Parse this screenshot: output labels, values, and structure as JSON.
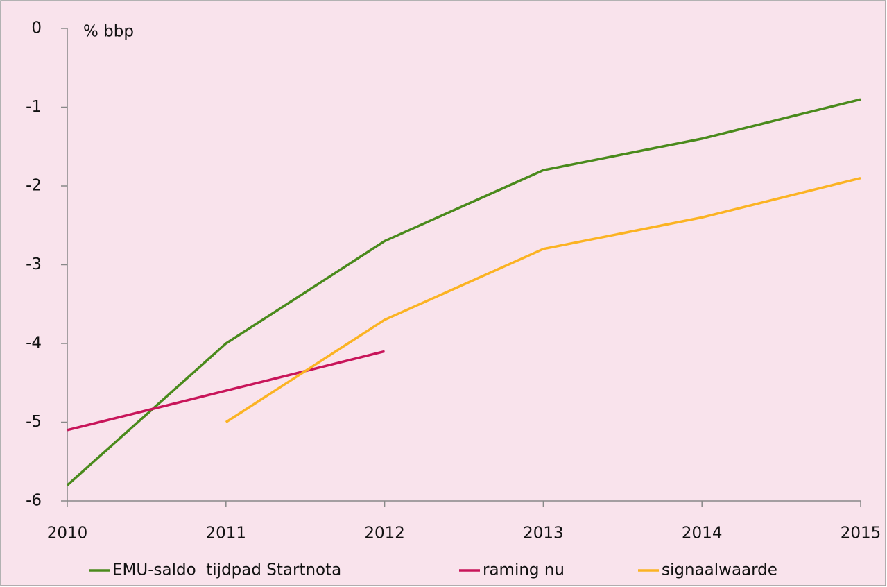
{
  "chart_data": {
    "type": "line",
    "y_label": "% bbp",
    "x": [
      2010,
      2011,
      2012,
      2013,
      2014,
      2015
    ],
    "series": [
      {
        "name": "EMU-saldo  tijdpad Startnota",
        "color": "#4a8a1c",
        "values": [
          -5.8,
          -4.0,
          -2.7,
          -1.8,
          -1.4,
          -0.9
        ]
      },
      {
        "name": "raming nu",
        "color": "#c8155a",
        "values": [
          -5.1,
          -4.6,
          -4.1,
          null,
          null,
          null
        ]
      },
      {
        "name": "signaalwaarde",
        "color": "#fbb323",
        "values": [
          null,
          -5.0,
          -3.7,
          -2.8,
          -2.4,
          -1.9
        ]
      }
    ],
    "xlim": [
      2010,
      2015
    ],
    "xticks": [
      2010,
      2011,
      2012,
      2013,
      2014,
      2015
    ],
    "ylim": [
      -6,
      0
    ],
    "yticks": [
      -6,
      -5,
      -4,
      -3,
      -2,
      -1,
      0
    ],
    "grid": false,
    "legend": "bottom"
  }
}
